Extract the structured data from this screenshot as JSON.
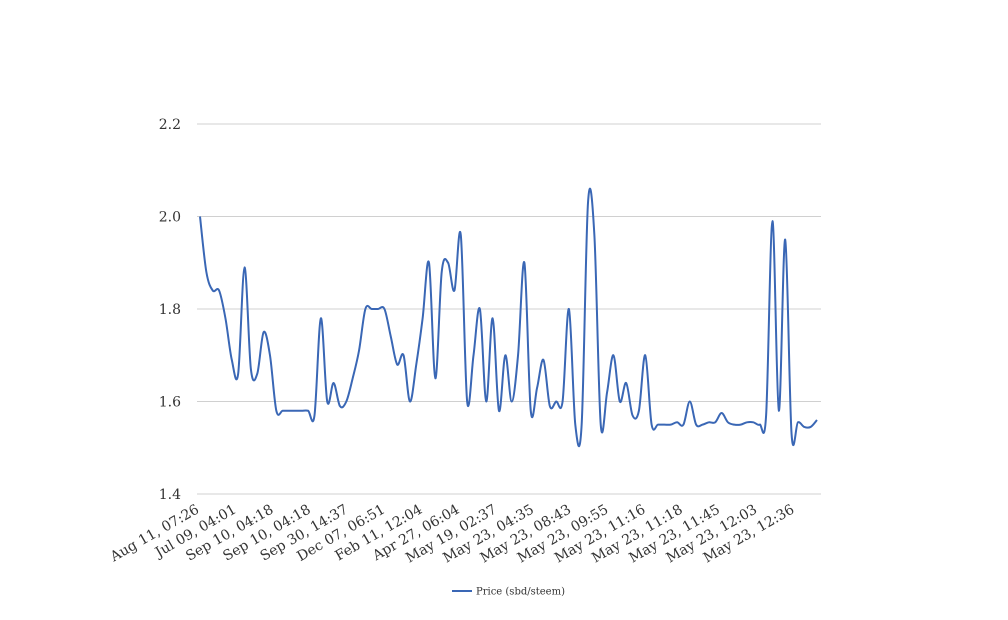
{
  "chart_data": {
    "type": "line",
    "title": "",
    "xlabel": "",
    "ylabel": "",
    "ylim": [
      1.4,
      2.2
    ],
    "yticks": [
      "1.4",
      "1.6",
      "1.8",
      "2.0",
      "2.2"
    ],
    "x_tick_labels": [
      "Aug 11, 07:26",
      "Jul 09, 04:01",
      "Sep 10, 04:18",
      "Sep 10, 04:18",
      "Sep 30, 14:37",
      "Dec 07, 06:51",
      "Feb 11, 12:04",
      "Apr 27, 06:04",
      "May 19, 02:37",
      "May 23, 04:35",
      "May 23, 08:43",
      "May 23, 09:55",
      "May 23, 11:16",
      "May 23, 11:18",
      "May 23, 11:45",
      "May 23, 12:03",
      "May 23, 12:36"
    ],
    "grid": true,
    "legend_position": "bottom",
    "series": [
      {
        "name": "Price (sbd/steem)",
        "color": "#3a67b5",
        "values": [
          2.0,
          1.88,
          1.84,
          1.84,
          1.78,
          1.69,
          1.66,
          1.89,
          1.67,
          1.66,
          1.75,
          1.7,
          1.58,
          1.58,
          1.58,
          1.58,
          1.58,
          1.58,
          1.57,
          1.78,
          1.6,
          1.64,
          1.59,
          1.6,
          1.65,
          1.71,
          1.8,
          1.8,
          1.8,
          1.8,
          1.74,
          1.68,
          1.7,
          1.6,
          1.68,
          1.78,
          1.9,
          1.65,
          1.88,
          1.9,
          1.84,
          1.96,
          1.6,
          1.7,
          1.8,
          1.6,
          1.78,
          1.58,
          1.7,
          1.6,
          1.7,
          1.9,
          1.58,
          1.63,
          1.69,
          1.59,
          1.6,
          1.6,
          1.8,
          1.55,
          1.55,
          2.03,
          1.96,
          1.55,
          1.62,
          1.7,
          1.6,
          1.64,
          1.57,
          1.58,
          1.7,
          1.55,
          1.55,
          1.55,
          1.55,
          1.555,
          1.55,
          1.6,
          1.55,
          1.55,
          1.555,
          1.555,
          1.575,
          1.555,
          1.55,
          1.55,
          1.555,
          1.555,
          1.55,
          1.57,
          1.99,
          1.58,
          1.95,
          1.53,
          1.555,
          1.545,
          1.545,
          1.56
        ]
      }
    ]
  }
}
